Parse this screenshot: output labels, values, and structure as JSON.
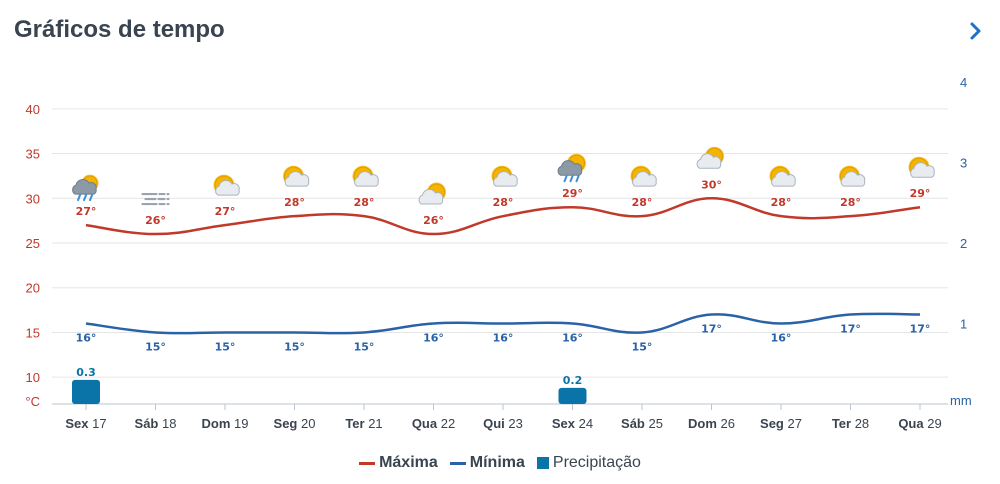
{
  "header": {
    "title": "Gráficos de tempo"
  },
  "chart_data": {
    "type": "line",
    "categories": [
      {
        "day": "Sex",
        "num": "17"
      },
      {
        "day": "Sáb",
        "num": "18"
      },
      {
        "day": "Dom",
        "num": "19"
      },
      {
        "day": "Seg",
        "num": "20"
      },
      {
        "day": "Ter",
        "num": "21"
      },
      {
        "day": "Qua",
        "num": "22"
      },
      {
        "day": "Qui",
        "num": "23"
      },
      {
        "day": "Sex",
        "num": "24"
      },
      {
        "day": "Sáb",
        "num": "25"
      },
      {
        "day": "Dom",
        "num": "26"
      },
      {
        "day": "Seg",
        "num": "27"
      },
      {
        "day": "Ter",
        "num": "28"
      },
      {
        "day": "Qua",
        "num": "29"
      }
    ],
    "series": [
      {
        "name": "Máxima",
        "axis": "temp",
        "color": "#c0392b",
        "values": [
          27,
          26,
          27,
          28,
          28,
          26,
          28,
          29,
          28,
          30,
          28,
          28,
          29
        ],
        "labels": [
          "27°",
          "26°",
          "27°",
          "28°",
          "28°",
          "26°",
          "28°",
          "29°",
          "28°",
          "30°",
          "28°",
          "28°",
          "29°"
        ]
      },
      {
        "name": "Mínima",
        "axis": "temp",
        "color": "#2a62a8",
        "values": [
          16,
          15,
          15,
          15,
          15,
          16,
          16,
          16,
          15,
          17,
          16,
          17,
          17
        ],
        "labels": [
          "16°",
          "15°",
          "15°",
          "15°",
          "15°",
          "16°",
          "16°",
          "16°",
          "15°",
          "17°",
          "16°",
          "17°",
          "17°"
        ]
      },
      {
        "name": "Precipitação",
        "axis": "mm",
        "color": "#0a74a8",
        "values": [
          0.3,
          0,
          0,
          0,
          0,
          0,
          0,
          0.2,
          0,
          0,
          0,
          0,
          0
        ],
        "labels": [
          "0.3",
          "",
          "",
          "",
          "",
          "",
          "",
          "0.2",
          "",
          "",
          "",
          "",
          ""
        ]
      }
    ],
    "yaxis_left": {
      "unit": "°C",
      "ticks": [
        10,
        15,
        20,
        25,
        30,
        35,
        40
      ],
      "range": [
        7,
        43
      ],
      "color": "#c0392b"
    },
    "yaxis_right": {
      "unit": "mm",
      "ticks": [
        1,
        2,
        3,
        4
      ],
      "range": [
        0,
        4
      ],
      "color": "#2a62a8"
    },
    "grid": true,
    "legend_position": "bottom-center"
  },
  "weather_icons": [
    "rain-cloud-icon",
    "fog-icon",
    "partly-sunny-icon",
    "partly-sunny-icon",
    "partly-sunny-icon",
    "sun-behind-cloud-icon",
    "partly-sunny-icon",
    "sun-rain-icon",
    "partly-sunny-icon",
    "sun-behind-cloud-icon",
    "partly-sunny-icon",
    "partly-sunny-icon",
    "partly-sunny-icon"
  ],
  "legend": [
    {
      "label": "Máxima",
      "color": "#c0392b",
      "kind": "line"
    },
    {
      "label": "Mínima",
      "color": "#2a62a8",
      "kind": "line"
    },
    {
      "label": "Precipitação",
      "color": "#0a74a8",
      "kind": "box"
    }
  ]
}
